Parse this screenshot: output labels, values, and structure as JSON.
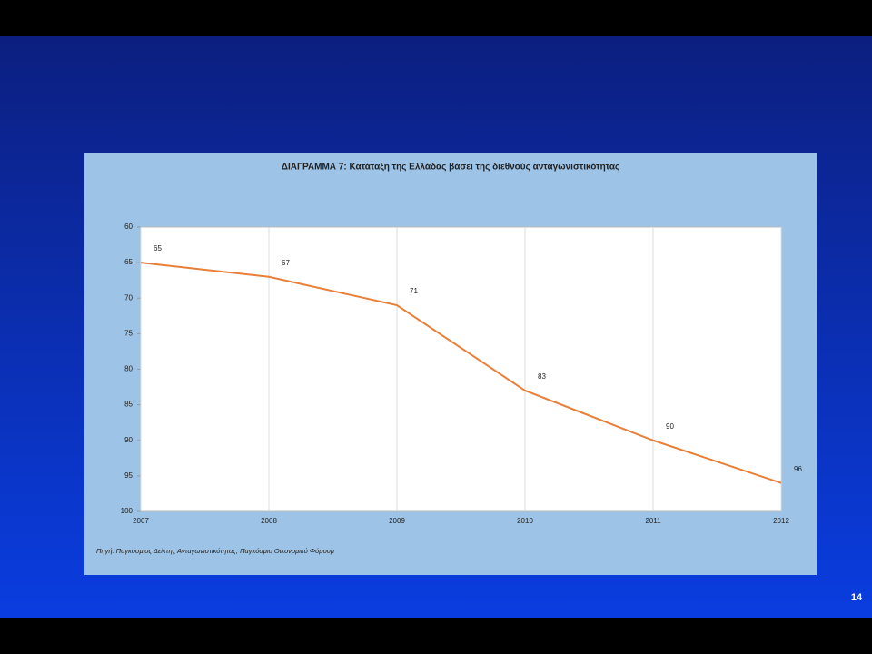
{
  "chart_data": {
    "type": "line",
    "title": "ΔΙΑΓΡΑΜΜΑ 7: Κατάταξη της Ελλάδας βάσει της διεθνούς ανταγωνιστικότητας",
    "x": [
      2007,
      2008,
      2009,
      2010,
      2011,
      2012
    ],
    "values": [
      65,
      67,
      71,
      83,
      90,
      96
    ],
    "color": "#e8803a",
    "xlim": [
      2007,
      2012
    ],
    "xticks": [
      2007,
      2008,
      2009,
      2010,
      2011,
      2012
    ],
    "ylim": [
      60,
      100
    ],
    "yticks": [
      60,
      65,
      70,
      75,
      80,
      85,
      90,
      95,
      100
    ],
    "y_reversed": true,
    "xgrid": true,
    "source": "Πηγή: Παγκόσμιος Δείκτης Ανταγωνιστικότητας, Παγκόσμιο Οικονομικό Φόρουμ"
  },
  "page_number": "14"
}
